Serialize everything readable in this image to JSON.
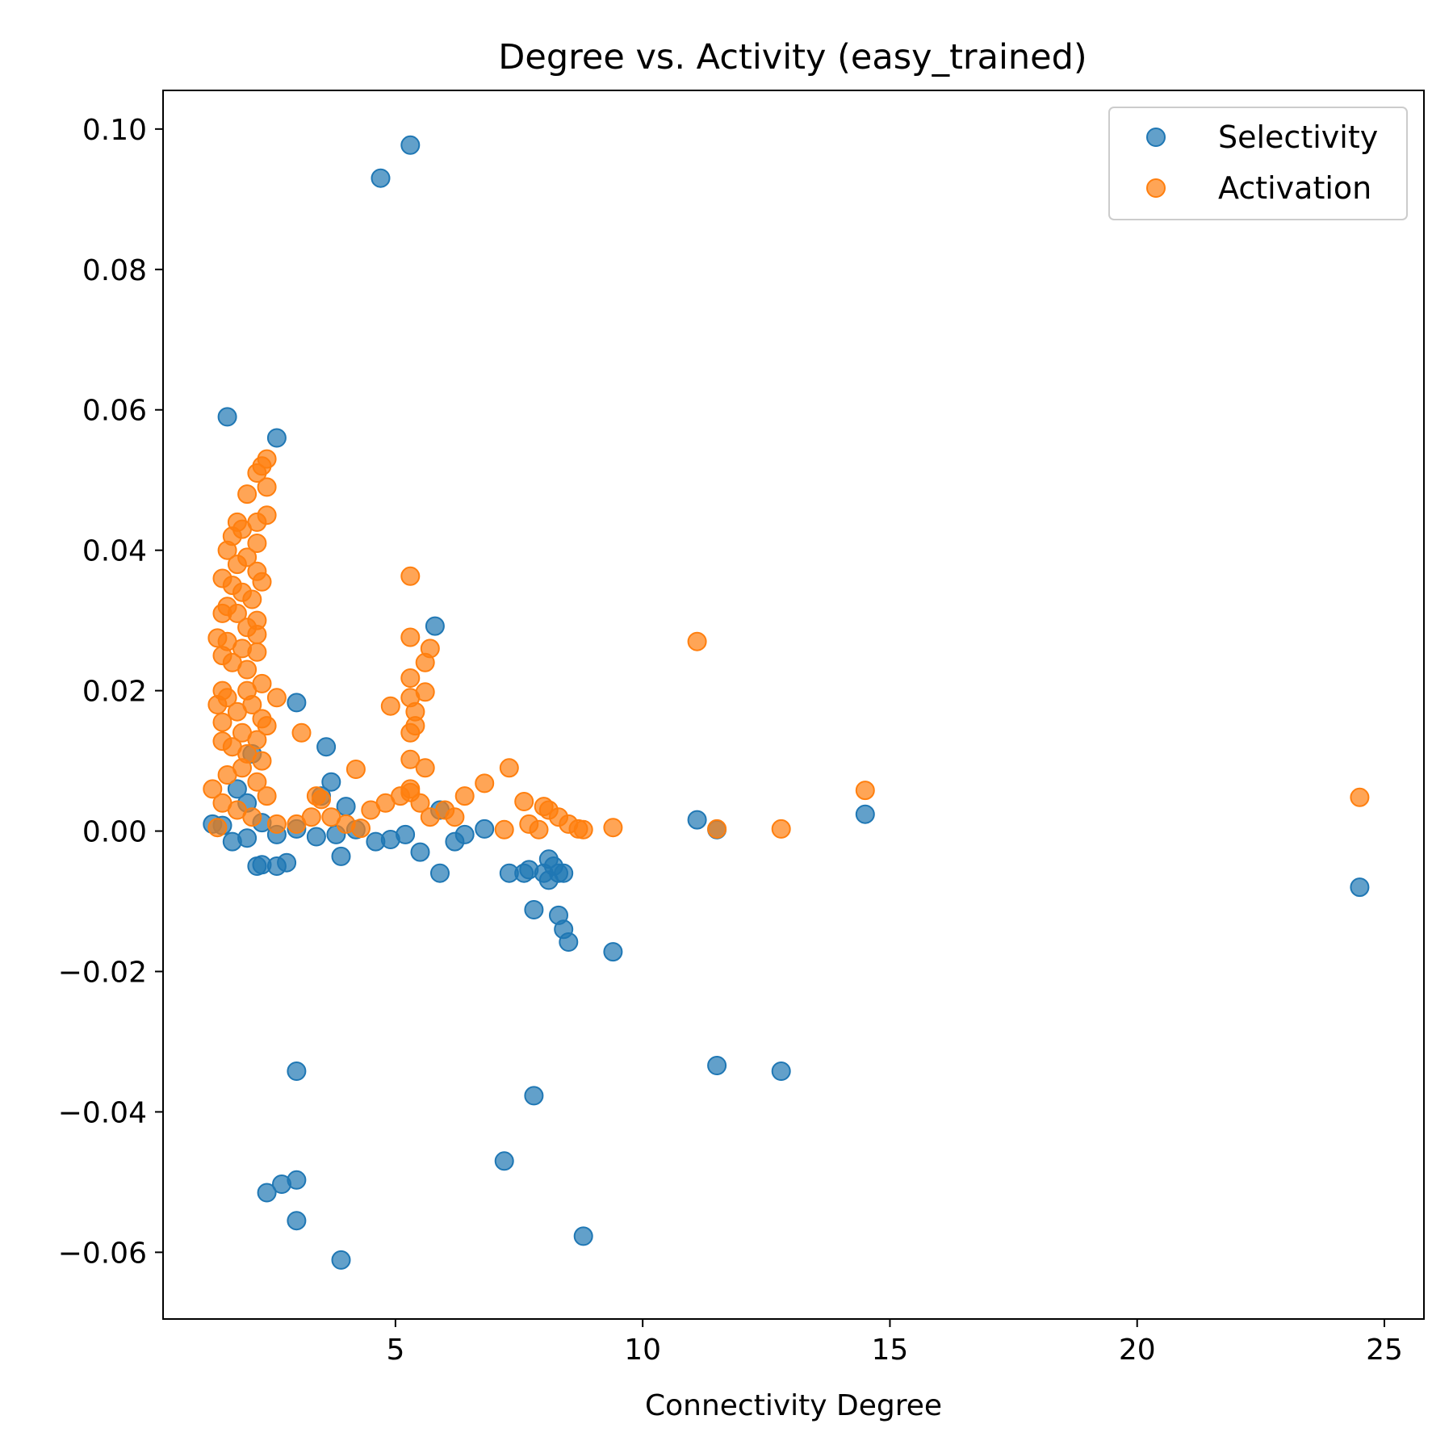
{
  "chart_data": {
    "type": "scatter",
    "title": "Degree vs. Activity (easy_trained)",
    "xlabel": "Connectivity Degree",
    "ylabel": "",
    "xlim": [
      0.3,
      25.8
    ],
    "ylim": [
      -0.0695,
      0.1055
    ],
    "xticks": [
      5,
      10,
      15,
      20,
      25
    ],
    "xtick_labels": [
      "5",
      "10",
      "15",
      "20",
      "25"
    ],
    "yticks": [
      -0.06,
      -0.04,
      -0.02,
      0.0,
      0.02,
      0.04,
      0.06,
      0.08,
      0.1
    ],
    "ytick_labels": [
      "−0.06",
      "−0.04",
      "−0.02",
      "0.00",
      "0.02",
      "0.04",
      "0.06",
      "0.08",
      "0.10"
    ],
    "grid": false,
    "legend_position": "top-right",
    "series": [
      {
        "name": "Selectivity",
        "color": "#1f77b4",
        "points": [
          [
            4.7,
            0.093
          ],
          [
            5.3,
            0.0977
          ],
          [
            1.6,
            0.059
          ],
          [
            2.6,
            0.056
          ],
          [
            5.8,
            0.0292
          ],
          [
            3.0,
            0.0183
          ],
          [
            3.6,
            0.012
          ],
          [
            3.7,
            0.007
          ],
          [
            3.5,
            0.005
          ],
          [
            4.0,
            0.0035
          ],
          [
            2.1,
            0.011
          ],
          [
            1.8,
            0.006
          ],
          [
            2.0,
            0.004
          ],
          [
            1.3,
            0.001
          ],
          [
            1.5,
            0.0008
          ],
          [
            1.7,
            -0.0015
          ],
          [
            2.0,
            -0.001
          ],
          [
            2.3,
            0.0012
          ],
          [
            2.6,
            -0.0005
          ],
          [
            3.0,
            0.0003
          ],
          [
            3.4,
            -0.0008
          ],
          [
            3.8,
            -0.0005
          ],
          [
            4.2,
            0.0002
          ],
          [
            4.6,
            -0.0015
          ],
          [
            4.9,
            -0.0012
          ],
          [
            5.2,
            -0.0005
          ],
          [
            5.5,
            -0.003
          ],
          [
            5.9,
            0.003
          ],
          [
            6.2,
            -0.0015
          ],
          [
            6.4,
            -0.0005
          ],
          [
            6.8,
            0.0003
          ],
          [
            2.2,
            -0.005
          ],
          [
            2.3,
            -0.0048
          ],
          [
            2.6,
            -0.005
          ],
          [
            2.8,
            -0.0045
          ],
          [
            3.9,
            -0.0036
          ],
          [
            5.9,
            -0.006
          ],
          [
            7.3,
            -0.006
          ],
          [
            7.6,
            -0.006
          ],
          [
            7.7,
            -0.0055
          ],
          [
            8.0,
            -0.006
          ],
          [
            8.1,
            -0.004
          ],
          [
            8.1,
            -0.007
          ],
          [
            8.2,
            -0.005
          ],
          [
            8.3,
            -0.006
          ],
          [
            8.4,
            -0.006
          ],
          [
            7.8,
            -0.0112
          ],
          [
            8.3,
            -0.012
          ],
          [
            8.4,
            -0.014
          ],
          [
            8.5,
            -0.0158
          ],
          [
            9.4,
            -0.0172
          ],
          [
            11.1,
            0.0016
          ],
          [
            11.5,
            0.0002
          ],
          [
            14.5,
            0.0024
          ],
          [
            24.5,
            -0.008
          ],
          [
            11.5,
            -0.0334
          ],
          [
            12.8,
            -0.0342
          ],
          [
            3.0,
            -0.0342
          ],
          [
            7.8,
            -0.0377
          ],
          [
            7.2,
            -0.047
          ],
          [
            2.4,
            -0.0515
          ],
          [
            2.7,
            -0.0503
          ],
          [
            3.0,
            -0.0497
          ],
          [
            3.0,
            -0.0555
          ],
          [
            8.8,
            -0.0577
          ],
          [
            3.9,
            -0.0611
          ]
        ]
      },
      {
        "name": "Activation",
        "color": "#ff7f0e",
        "points": [
          [
            2.4,
            0.053
          ],
          [
            2.3,
            0.052
          ],
          [
            2.2,
            0.051
          ],
          [
            2.4,
            0.049
          ],
          [
            2.0,
            0.048
          ],
          [
            2.4,
            0.045
          ],
          [
            2.2,
            0.044
          ],
          [
            1.8,
            0.044
          ],
          [
            1.9,
            0.043
          ],
          [
            1.7,
            0.042
          ],
          [
            2.2,
            0.041
          ],
          [
            1.6,
            0.04
          ],
          [
            2.0,
            0.039
          ],
          [
            1.8,
            0.038
          ],
          [
            2.2,
            0.037
          ],
          [
            1.5,
            0.036
          ],
          [
            2.3,
            0.0355
          ],
          [
            1.7,
            0.035
          ],
          [
            1.9,
            0.034
          ],
          [
            2.1,
            0.033
          ],
          [
            1.6,
            0.032
          ],
          [
            1.8,
            0.031
          ],
          [
            2.2,
            0.03
          ],
          [
            1.5,
            0.031
          ],
          [
            2.0,
            0.029
          ],
          [
            2.2,
            0.028
          ],
          [
            1.4,
            0.0275
          ],
          [
            1.6,
            0.027
          ],
          [
            1.9,
            0.026
          ],
          [
            2.2,
            0.0255
          ],
          [
            1.5,
            0.025
          ],
          [
            1.7,
            0.024
          ],
          [
            2.0,
            0.023
          ],
          [
            2.3,
            0.021
          ],
          [
            1.5,
            0.02
          ],
          [
            2.0,
            0.02
          ],
          [
            2.6,
            0.019
          ],
          [
            1.6,
            0.019
          ],
          [
            1.4,
            0.018
          ],
          [
            2.1,
            0.018
          ],
          [
            1.8,
            0.017
          ],
          [
            2.3,
            0.016
          ],
          [
            1.5,
            0.0155
          ],
          [
            2.4,
            0.015
          ],
          [
            1.9,
            0.014
          ],
          [
            2.2,
            0.013
          ],
          [
            1.5,
            0.0128
          ],
          [
            1.7,
            0.012
          ],
          [
            2.0,
            0.011
          ],
          [
            2.3,
            0.01
          ],
          [
            1.9,
            0.009
          ],
          [
            1.6,
            0.008
          ],
          [
            2.2,
            0.007
          ],
          [
            1.3,
            0.006
          ],
          [
            2.4,
            0.005
          ],
          [
            1.5,
            0.004
          ],
          [
            1.8,
            0.003
          ],
          [
            2.1,
            0.002
          ],
          [
            2.6,
            0.001
          ],
          [
            1.4,
            0.0005
          ],
          [
            3.0,
            0.001
          ],
          [
            3.3,
            0.002
          ],
          [
            3.5,
            0.0045
          ],
          [
            3.4,
            0.005
          ],
          [
            3.7,
            0.002
          ],
          [
            4.0,
            0.001
          ],
          [
            4.3,
            0.0004
          ],
          [
            4.5,
            0.003
          ],
          [
            4.8,
            0.004
          ],
          [
            5.1,
            0.005
          ],
          [
            5.3,
            0.0055
          ],
          [
            5.5,
            0.004
          ],
          [
            5.7,
            0.002
          ],
          [
            6.0,
            0.003
          ],
          [
            6.2,
            0.002
          ],
          [
            3.1,
            0.014
          ],
          [
            4.2,
            0.0088
          ],
          [
            5.3,
            0.0363
          ],
          [
            5.3,
            0.0276
          ],
          [
            5.7,
            0.026
          ],
          [
            5.6,
            0.024
          ],
          [
            5.3,
            0.0218
          ],
          [
            5.6,
            0.0198
          ],
          [
            5.3,
            0.019
          ],
          [
            4.9,
            0.0178
          ],
          [
            5.4,
            0.017
          ],
          [
            5.4,
            0.015
          ],
          [
            5.3,
            0.014
          ],
          [
            5.6,
            0.009
          ],
          [
            5.3,
            0.0102
          ],
          [
            5.3,
            0.006
          ],
          [
            6.4,
            0.005
          ],
          [
            6.8,
            0.0068
          ],
          [
            7.3,
            0.009
          ],
          [
            7.6,
            0.0042
          ],
          [
            7.7,
            0.001
          ],
          [
            7.9,
            0.0002
          ],
          [
            8.0,
            0.0035
          ],
          [
            8.1,
            0.003
          ],
          [
            8.3,
            0.002
          ],
          [
            8.5,
            0.001
          ],
          [
            8.7,
            0.0003
          ],
          [
            8.8,
            0.0002
          ],
          [
            7.2,
            0.0002
          ],
          [
            9.4,
            0.0005
          ],
          [
            11.1,
            0.027
          ],
          [
            11.5,
            0.0003
          ],
          [
            12.8,
            0.0003
          ],
          [
            14.5,
            0.0058
          ],
          [
            24.5,
            0.0048
          ]
        ]
      }
    ]
  }
}
